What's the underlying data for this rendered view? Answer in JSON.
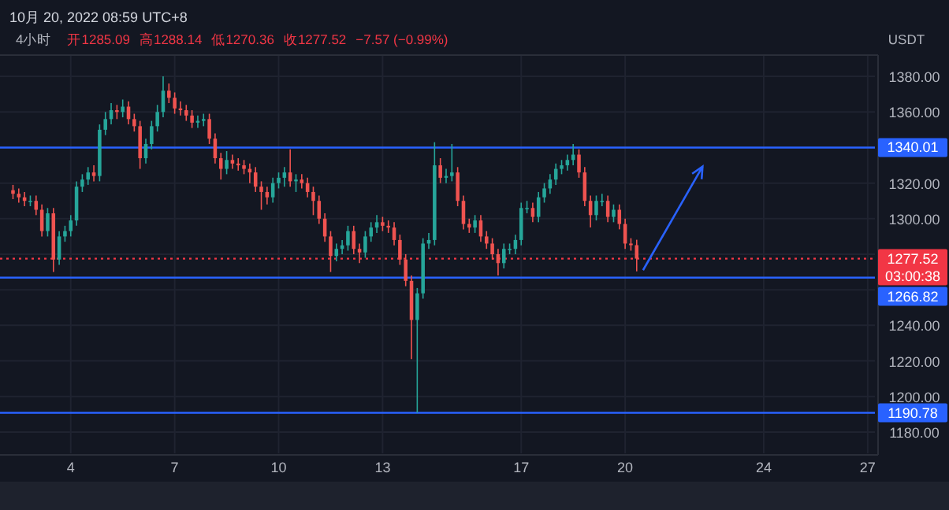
{
  "chart_data": {
    "type": "candlestick",
    "title": "4小时",
    "subtitle": "10月 20, 2022 08:59 UTC+8",
    "ylabel": "USDT",
    "annotations": [
      "开1285.09",
      "高1288.14",
      "低1270.36",
      "收1277.52",
      "−7.57 (−0.99%)"
    ],
    "x": [
      "2022-10-02T08:00",
      "2022-10-02T12:00",
      "2022-10-02T16:00",
      "2022-10-02T20:00",
      "2022-10-03T00:00",
      "2022-10-03T04:00",
      "2022-10-03T08:00",
      "2022-10-03T12:00",
      "2022-10-03T16:00",
      "2022-10-03T20:00",
      "2022-10-04T00:00",
      "2022-10-04T04:00",
      "2022-10-04T08:00",
      "2022-10-04T12:00",
      "2022-10-04T16:00",
      "2022-10-04T20:00",
      "2022-10-05T00:00",
      "2022-10-05T04:00",
      "2022-10-05T08:00",
      "2022-10-05T12:00",
      "2022-10-05T16:00",
      "2022-10-05T20:00",
      "2022-10-06T00:00",
      "2022-10-06T04:00",
      "2022-10-06T08:00",
      "2022-10-06T12:00",
      "2022-10-06T16:00",
      "2022-10-06T20:00",
      "2022-10-07T00:00",
      "2022-10-07T04:00",
      "2022-10-07T08:00",
      "2022-10-07T12:00",
      "2022-10-07T16:00",
      "2022-10-07T20:00",
      "2022-10-08T00:00",
      "2022-10-08T04:00",
      "2022-10-08T08:00",
      "2022-10-08T12:00",
      "2022-10-08T16:00",
      "2022-10-08T20:00",
      "2022-10-09T00:00",
      "2022-10-09T04:00",
      "2022-10-09T08:00",
      "2022-10-09T12:00",
      "2022-10-09T16:00",
      "2022-10-09T20:00",
      "2022-10-10T00:00",
      "2022-10-10T04:00",
      "2022-10-10T08:00",
      "2022-10-10T12:00",
      "2022-10-10T16:00",
      "2022-10-10T20:00",
      "2022-10-11T00:00",
      "2022-10-11T04:00",
      "2022-10-11T08:00",
      "2022-10-11T12:00",
      "2022-10-11T16:00",
      "2022-10-11T20:00",
      "2022-10-12T00:00",
      "2022-10-12T04:00",
      "2022-10-12T08:00",
      "2022-10-12T12:00",
      "2022-10-12T16:00",
      "2022-10-12T20:00",
      "2022-10-13T00:00",
      "2022-10-13T04:00",
      "2022-10-13T08:00",
      "2022-10-13T12:00",
      "2022-10-13T16:00",
      "2022-10-13T20:00",
      "2022-10-14T00:00",
      "2022-10-14T04:00",
      "2022-10-14T08:00",
      "2022-10-14T12:00",
      "2022-10-14T16:00",
      "2022-10-14T20:00",
      "2022-10-15T00:00",
      "2022-10-15T04:00",
      "2022-10-15T08:00",
      "2022-10-15T12:00",
      "2022-10-15T16:00",
      "2022-10-15T20:00",
      "2022-10-16T00:00",
      "2022-10-16T04:00",
      "2022-10-16T08:00",
      "2022-10-16T12:00",
      "2022-10-16T16:00",
      "2022-10-16T20:00",
      "2022-10-17T00:00",
      "2022-10-17T04:00",
      "2022-10-17T08:00",
      "2022-10-17T12:00",
      "2022-10-17T16:00",
      "2022-10-17T20:00",
      "2022-10-18T00:00",
      "2022-10-18T04:00",
      "2022-10-18T08:00",
      "2022-10-18T12:00",
      "2022-10-18T16:00",
      "2022-10-18T20:00",
      "2022-10-19T00:00",
      "2022-10-19T04:00",
      "2022-10-19T08:00",
      "2022-10-19T12:00",
      "2022-10-19T16:00",
      "2022-10-19T20:00",
      "2022-10-20T00:00",
      "2022-10-20T04:00",
      "2022-10-20T08:00"
    ],
    "ohlc": [
      [
        1316,
        1319,
        1311,
        1314
      ],
      [
        1314,
        1317,
        1309,
        1312
      ],
      [
        1312,
        1315,
        1307,
        1310
      ],
      [
        1310,
        1313,
        1307,
        1310
      ],
      [
        1310,
        1313,
        1302,
        1305
      ],
      [
        1305,
        1308,
        1290,
        1293
      ],
      [
        1293,
        1306,
        1290,
        1303
      ],
      [
        1303,
        1306,
        1270,
        1277
      ],
      [
        1277,
        1293,
        1274,
        1290
      ],
      [
        1290,
        1296,
        1287,
        1293
      ],
      [
        1293,
        1302,
        1290,
        1299
      ],
      [
        1299,
        1321,
        1296,
        1318
      ],
      [
        1318,
        1325,
        1315,
        1322
      ],
      [
        1322,
        1329,
        1319,
        1326
      ],
      [
        1326,
        1330,
        1321,
        1324
      ],
      [
        1324,
        1353,
        1321,
        1350
      ],
      [
        1350,
        1360,
        1347,
        1356
      ],
      [
        1356,
        1365,
        1353,
        1361
      ],
      [
        1361,
        1364,
        1356,
        1360
      ],
      [
        1360,
        1367,
        1357,
        1363
      ],
      [
        1363,
        1366,
        1353,
        1356
      ],
      [
        1356,
        1359,
        1349,
        1352
      ],
      [
        1352,
        1355,
        1328,
        1334
      ],
      [
        1334,
        1345,
        1331,
        1342
      ],
      [
        1342,
        1355,
        1339,
        1352
      ],
      [
        1352,
        1364,
        1349,
        1360
      ],
      [
        1360,
        1380,
        1357,
        1372
      ],
      [
        1372,
        1376,
        1365,
        1368
      ],
      [
        1368,
        1371,
        1359,
        1362
      ],
      [
        1362,
        1366,
        1358,
        1361
      ],
      [
        1361,
        1364,
        1355,
        1358
      ],
      [
        1358,
        1361,
        1351,
        1354
      ],
      [
        1354,
        1358,
        1351,
        1355
      ],
      [
        1355,
        1359,
        1352,
        1356
      ],
      [
        1356,
        1359,
        1342,
        1345
      ],
      [
        1345,
        1348,
        1331,
        1334
      ],
      [
        1334,
        1337,
        1322,
        1328
      ],
      [
        1328,
        1338,
        1325,
        1333
      ],
      [
        1333,
        1336,
        1328,
        1331
      ],
      [
        1331,
        1334,
        1327,
        1330
      ],
      [
        1330,
        1333,
        1325,
        1328
      ],
      [
        1328,
        1331,
        1320,
        1326
      ],
      [
        1326,
        1329,
        1315,
        1318
      ],
      [
        1318,
        1321,
        1305,
        1315
      ],
      [
        1315,
        1318,
        1308,
        1312
      ],
      [
        1312,
        1323,
        1309,
        1320
      ],
      [
        1320,
        1326,
        1317,
        1323
      ],
      [
        1323,
        1329,
        1318,
        1326
      ],
      [
        1326,
        1339,
        1318,
        1321
      ],
      [
        1321,
        1325,
        1315,
        1322
      ],
      [
        1322,
        1325,
        1317,
        1320
      ],
      [
        1320,
        1323,
        1312,
        1315
      ],
      [
        1315,
        1318,
        1302,
        1310
      ],
      [
        1310,
        1313,
        1297,
        1300
      ],
      [
        1300,
        1303,
        1287,
        1290
      ],
      [
        1290,
        1293,
        1270,
        1279
      ],
      [
        1279,
        1286,
        1276,
        1283
      ],
      [
        1283,
        1288,
        1280,
        1285
      ],
      [
        1285,
        1296,
        1282,
        1293
      ],
      [
        1293,
        1296,
        1280,
        1283
      ],
      [
        1283,
        1286,
        1275,
        1281
      ],
      [
        1281,
        1293,
        1278,
        1290
      ],
      [
        1290,
        1298,
        1287,
        1295
      ],
      [
        1295,
        1302,
        1292,
        1298
      ],
      [
        1298,
        1301,
        1293,
        1296
      ],
      [
        1296,
        1299,
        1292,
        1295
      ],
      [
        1295,
        1298,
        1285,
        1288
      ],
      [
        1288,
        1291,
        1274,
        1277
      ],
      [
        1277,
        1280,
        1262,
        1265
      ],
      [
        1265,
        1268,
        1221,
        1243
      ],
      [
        1243,
        1261,
        1190.78,
        1258
      ],
      [
        1258,
        1289,
        1255,
        1286
      ],
      [
        1286,
        1292,
        1283,
        1288
      ],
      [
        1288,
        1343,
        1285,
        1330
      ],
      [
        1330,
        1334,
        1320,
        1323
      ],
      [
        1323,
        1328,
        1320,
        1324
      ],
      [
        1324,
        1342,
        1321,
        1326
      ],
      [
        1326,
        1329,
        1307,
        1310
      ],
      [
        1310,
        1313,
        1294,
        1297
      ],
      [
        1297,
        1300,
        1292,
        1295
      ],
      [
        1295,
        1302,
        1292,
        1299
      ],
      [
        1299,
        1302,
        1287,
        1290
      ],
      [
        1290,
        1293,
        1283,
        1286
      ],
      [
        1286,
        1289,
        1277,
        1280
      ],
      [
        1280,
        1283,
        1268,
        1275
      ],
      [
        1275,
        1286,
        1272,
        1283
      ],
      [
        1283,
        1286,
        1280,
        1283
      ],
      [
        1283,
        1291,
        1280,
        1288
      ],
      [
        1288,
        1309,
        1285,
        1306
      ],
      [
        1306,
        1310,
        1303,
        1306
      ],
      [
        1306,
        1309,
        1298,
        1301
      ],
      [
        1301,
        1315,
        1298,
        1312
      ],
      [
        1312,
        1320,
        1309,
        1317
      ],
      [
        1317,
        1325,
        1314,
        1322
      ],
      [
        1322,
        1331,
        1319,
        1328
      ],
      [
        1328,
        1333,
        1325,
        1330
      ],
      [
        1330,
        1336,
        1327,
        1333
      ],
      [
        1333,
        1342,
        1330,
        1336
      ],
      [
        1336,
        1339,
        1323,
        1326
      ],
      [
        1326,
        1329,
        1307,
        1310
      ],
      [
        1310,
        1313,
        1295,
        1302
      ],
      [
        1302,
        1313,
        1299,
        1310
      ],
      [
        1310,
        1314,
        1307,
        1310
      ],
      [
        1310,
        1313,
        1298,
        1301
      ],
      [
        1301,
        1308,
        1298,
        1305
      ],
      [
        1305,
        1308,
        1294,
        1297
      ],
      [
        1297,
        1300,
        1283,
        1286
      ],
      [
        1286,
        1289,
        1282,
        1285.09
      ],
      [
        1285.09,
        1288.14,
        1270.36,
        1277.52
      ]
    ],
    "xlim": [
      "2022-10-01T23:00",
      "2022-10-27T05:00"
    ],
    "xticks": [
      {
        "value": "2022-10-04",
        "label": "4"
      },
      {
        "value": "2022-10-07",
        "label": "7"
      },
      {
        "value": "2022-10-10",
        "label": "10"
      },
      {
        "value": "2022-10-13",
        "label": "13"
      },
      {
        "value": "2022-10-17",
        "label": "17"
      },
      {
        "value": "2022-10-20",
        "label": "20"
      },
      {
        "value": "2022-10-24",
        "label": "24"
      },
      {
        "value": "2022-10-27",
        "label": "27"
      }
    ],
    "ylim": [
      1168,
      1392
    ],
    "yticks": [
      {
        "value": 1180,
        "label": "1180.00"
      },
      {
        "value": 1200,
        "label": "1200.00"
      },
      {
        "value": 1220,
        "label": "1220.00"
      },
      {
        "value": 1240,
        "label": "1240.00"
      },
      {
        "value": 1260,
        "label": null
      },
      {
        "value": 1280,
        "label": null
      },
      {
        "value": 1300,
        "label": "1300.00"
      },
      {
        "value": 1320,
        "label": "1320.00"
      },
      {
        "value": 1340,
        "label": null
      },
      {
        "value": 1360,
        "label": "1360.00"
      },
      {
        "value": 1380,
        "label": "1380.00"
      }
    ],
    "ref_lines": [
      {
        "axis": "y",
        "value": 1340.01,
        "label": "1340.01",
        "color": "#2962ff",
        "line_style": "solid"
      },
      {
        "axis": "y",
        "value": 1266.82,
        "label": "1266.82",
        "color": "#2962ff",
        "line_style": "solid"
      },
      {
        "axis": "y",
        "value": 1190.78,
        "label": "1190.78",
        "color": "#2962ff",
        "line_style": "solid"
      },
      {
        "axis": "y",
        "value": 1277.52,
        "label": "1277.52 03:00:38",
        "color": "#f23645",
        "line_style": "dotted"
      }
    ],
    "grid": true
  }
}
